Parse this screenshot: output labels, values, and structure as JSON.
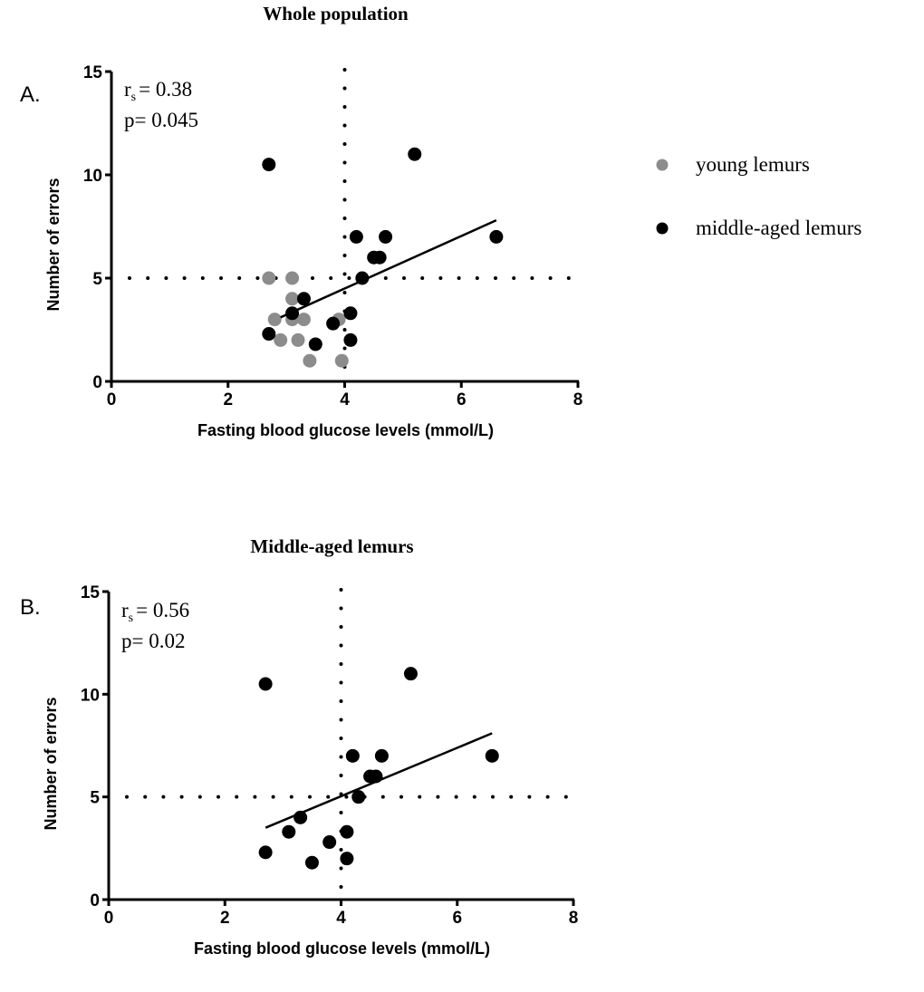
{
  "legend": {
    "placement": "right",
    "items": [
      {
        "label": "young lemurs",
        "color": "#8c8c8c"
      },
      {
        "label": "middle-aged lemurs",
        "color": "#000000"
      }
    ]
  },
  "chart_data": [
    {
      "type": "scatter",
      "panel_label": "A.",
      "title": "Whole population",
      "xlabel": "Fasting blood glucose levels (mmol/L)",
      "ylabel": "Number of errors",
      "xlim": [
        0,
        8
      ],
      "ylim": [
        0,
        15
      ],
      "xticks": [
        0,
        2,
        4,
        6,
        8
      ],
      "yticks": [
        0,
        5,
        10,
        15
      ],
      "stats": {
        "rs": "= 0.38",
        "p": "p= 0.045"
      },
      "reference_lines": {
        "x": 4,
        "y": 5,
        "style": "dotted"
      },
      "regression": {
        "x": [
          2.9,
          6.6
        ],
        "y": [
          3.1,
          7.8
        ]
      },
      "series": [
        {
          "name": "young lemurs",
          "color": "#8c8c8c",
          "points": [
            [
              2.7,
              5
            ],
            [
              3.1,
              5
            ],
            [
              3.1,
              4
            ],
            [
              2.8,
              3
            ],
            [
              3.1,
              3
            ],
            [
              3.3,
              3
            ],
            [
              3.9,
              3
            ],
            [
              2.9,
              2
            ],
            [
              3.2,
              2
            ],
            [
              3.4,
              1
            ],
            [
              3.95,
              1
            ]
          ]
        },
        {
          "name": "middle-aged lemurs",
          "color": "#000000",
          "points": [
            [
              2.7,
              10.5
            ],
            [
              5.2,
              11
            ],
            [
              4.2,
              7
            ],
            [
              4.7,
              7
            ],
            [
              6.6,
              7
            ],
            [
              4.5,
              6
            ],
            [
              4.6,
              6
            ],
            [
              4.3,
              5
            ],
            [
              3.3,
              4
            ],
            [
              3.1,
              3.3
            ],
            [
              4.1,
              3.3
            ],
            [
              3.8,
              2.8
            ],
            [
              2.7,
              2.3
            ],
            [
              3.5,
              1.8
            ],
            [
              4.1,
              2
            ]
          ]
        }
      ]
    },
    {
      "type": "scatter",
      "panel_label": "B.",
      "title": "Middle-aged lemurs",
      "xlabel": "Fasting blood glucose levels (mmol/L)",
      "ylabel": "Number of errors",
      "xlim": [
        0,
        8
      ],
      "ylim": [
        0,
        15
      ],
      "xticks": [
        0,
        2,
        4,
        6,
        8
      ],
      "yticks": [
        0,
        5,
        10,
        15
      ],
      "stats": {
        "rs": "= 0.56",
        "p": "p= 0.02"
      },
      "reference_lines": {
        "x": 4,
        "y": 5,
        "style": "dotted"
      },
      "regression": {
        "x": [
          2.7,
          6.6
        ],
        "y": [
          3.5,
          8.1
        ]
      },
      "series": [
        {
          "name": "middle-aged lemurs",
          "color": "#000000",
          "points": [
            [
              2.7,
              10.5
            ],
            [
              5.2,
              11
            ],
            [
              4.2,
              7
            ],
            [
              4.7,
              7
            ],
            [
              6.6,
              7
            ],
            [
              4.5,
              6
            ],
            [
              4.6,
              6
            ],
            [
              4.3,
              5
            ],
            [
              3.3,
              4
            ],
            [
              3.1,
              3.3
            ],
            [
              4.1,
              3.3
            ],
            [
              3.8,
              2.8
            ],
            [
              2.7,
              2.3
            ],
            [
              3.5,
              1.8
            ],
            [
              4.1,
              2
            ]
          ]
        }
      ]
    }
  ]
}
